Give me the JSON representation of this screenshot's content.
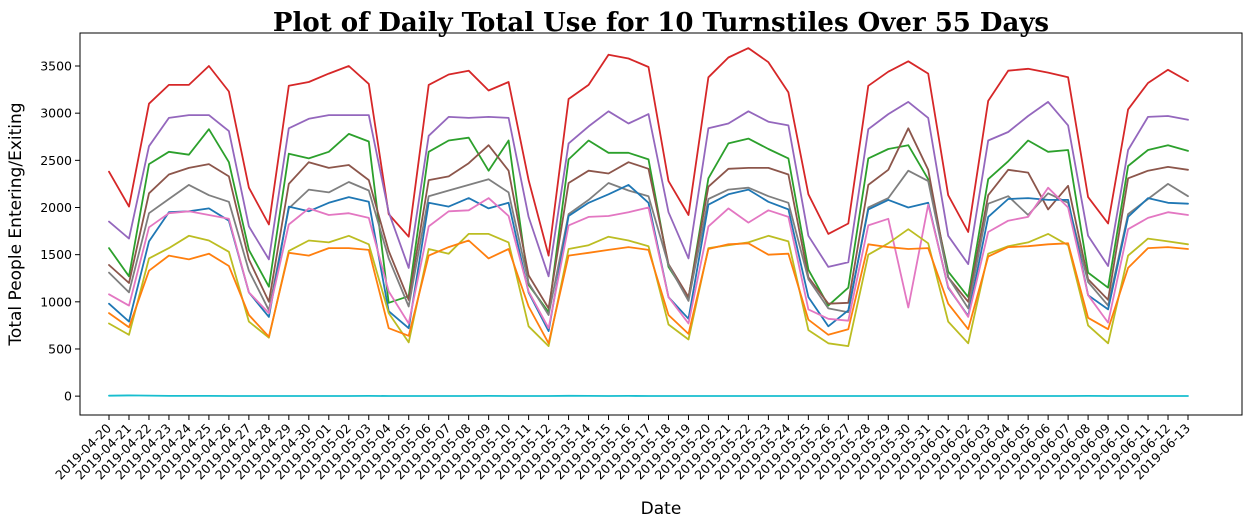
{
  "chart_data": {
    "type": "line",
    "title": "Plot of Daily Total Use for 10 Turnstiles Over 55 Days",
    "xlabel": "Date",
    "ylabel": "Total People Entering/Exiting",
    "ylim": [
      -200,
      3850
    ],
    "yticks": [
      0,
      500,
      1000,
      1500,
      2000,
      2500,
      3000,
      3500
    ],
    "grid": false,
    "x": [
      "2019-04-20",
      "2019-04-21",
      "2019-04-22",
      "2019-04-23",
      "2019-04-24",
      "2019-04-25",
      "2019-04-26",
      "2019-04-27",
      "2019-04-28",
      "2019-04-29",
      "2019-04-30",
      "2019-05-01",
      "2019-05-02",
      "2019-05-03",
      "2019-05-04",
      "2019-05-05",
      "2019-05-06",
      "2019-05-07",
      "2019-05-08",
      "2019-05-09",
      "2019-05-10",
      "2019-05-11",
      "2019-05-12",
      "2019-05-13",
      "2019-05-14",
      "2019-05-15",
      "2019-05-16",
      "2019-05-17",
      "2019-05-18",
      "2019-05-19",
      "2019-05-20",
      "2019-05-21",
      "2019-05-22",
      "2019-05-23",
      "2019-05-24",
      "2019-05-25",
      "2019-05-26",
      "2019-05-27",
      "2019-05-28",
      "2019-05-29",
      "2019-05-30",
      "2019-05-31",
      "2019-06-01",
      "2019-06-02",
      "2019-06-03",
      "2019-06-04",
      "2019-06-05",
      "2019-06-06",
      "2019-06-07",
      "2019-06-08",
      "2019-06-09",
      "2019-06-10",
      "2019-06-11",
      "2019-06-12",
      "2019-06-13"
    ],
    "series": [
      {
        "color": "#d62728",
        "values": [
          2380,
          2010,
          3100,
          3300,
          3300,
          3500,
          3230,
          2210,
          1820,
          3290,
          3330,
          3420,
          3500,
          3310,
          1930,
          1690,
          3300,
          3410,
          3450,
          3240,
          3330,
          2290,
          1490,
          3150,
          3300,
          3620,
          3580,
          3490,
          2280,
          1920,
          3380,
          3590,
          3690,
          3540,
          3220,
          2140,
          1720,
          1830,
          3290,
          3440,
          3550,
          3420,
          2130,
          1740,
          3130,
          3450,
          3470,
          3430,
          3380,
          2110,
          1830,
          3040,
          3320,
          3460,
          3340
        ]
      },
      {
        "color": "#9467bd",
        "values": [
          1850,
          1670,
          2650,
          2950,
          2980,
          2980,
          2810,
          1800,
          1450,
          2840,
          2940,
          2980,
          2980,
          2980,
          1950,
          1360,
          2760,
          2960,
          2950,
          2960,
          2950,
          1900,
          1270,
          2680,
          2860,
          3020,
          2890,
          2990,
          1950,
          1460,
          2840,
          2890,
          3020,
          2910,
          2870,
          1700,
          1370,
          1420,
          2830,
          2990,
          3120,
          2950,
          1700,
          1400,
          2710,
          2800,
          2970,
          3120,
          2870,
          1700,
          1380,
          2610,
          2960,
          2970,
          2930
        ]
      },
      {
        "color": "#2ca02c",
        "values": [
          1570,
          1270,
          2460,
          2590,
          2560,
          2830,
          2480,
          1550,
          1160,
          2570,
          2520,
          2590,
          2780,
          2700,
          990,
          1060,
          2590,
          2710,
          2740,
          2390,
          2710,
          1180,
          890,
          2510,
          2710,
          2580,
          2580,
          2510,
          1370,
          1040,
          2310,
          2680,
          2730,
          2620,
          2520,
          1340,
          960,
          1150,
          2520,
          2620,
          2660,
          2300,
          1320,
          1050,
          2300,
          2490,
          2710,
          2590,
          2610,
          1310,
          1150,
          2440,
          2610,
          2660,
          2600
        ]
      },
      {
        "color": "#8c564b",
        "values": [
          1390,
          1200,
          2150,
          2350,
          2420,
          2460,
          2330,
          1450,
          1000,
          2250,
          2480,
          2420,
          2450,
          2290,
          1540,
          1020,
          2290,
          2330,
          2470,
          2660,
          2390,
          1280,
          930,
          2260,
          2390,
          2360,
          2480,
          2410,
          1400,
          1050,
          2220,
          2410,
          2420,
          2420,
          2350,
          1260,
          980,
          990,
          2240,
          2400,
          2840,
          2400,
          1260,
          1000,
          2130,
          2400,
          2370,
          1980,
          2230,
          1240,
          1020,
          2310,
          2390,
          2430,
          2400
        ]
      },
      {
        "color": "#7f7f7f",
        "values": [
          1310,
          1100,
          1940,
          2090,
          2240,
          2130,
          2060,
          1330,
          910,
          1990,
          2190,
          2160,
          2270,
          2180,
          1460,
          950,
          2120,
          2180,
          2240,
          2300,
          2160,
          1200,
          860,
          1930,
          2080,
          2260,
          2180,
          2120,
          1390,
          1010,
          2090,
          2190,
          2210,
          2120,
          2050,
          1240,
          930,
          890,
          2000,
          2100,
          2390,
          2280,
          1260,
          930,
          2040,
          2120,
          1920,
          2150,
          2050,
          1210,
          960,
          1930,
          2090,
          2250,
          2120
        ]
      },
      {
        "color": "#1f77b4",
        "values": [
          980,
          790,
          1640,
          1950,
          1960,
          1990,
          1860,
          1100,
          840,
          2010,
          1960,
          2050,
          2110,
          2060,
          900,
          720,
          2050,
          2010,
          2100,
          1990,
          2050,
          1100,
          690,
          1910,
          2050,
          2140,
          2240,
          2050,
          1050,
          820,
          2030,
          2140,
          2190,
          2060,
          1980,
          1050,
          740,
          910,
          1980,
          2080,
          2000,
          2050,
          1150,
          850,
          1900,
          2090,
          2100,
          2080,
          2080,
          1070,
          920,
          1900,
          2100,
          2050,
          2040
        ]
      },
      {
        "color": "#e377c2",
        "values": [
          1080,
          960,
          1790,
          1940,
          1960,
          1920,
          1880,
          1100,
          880,
          1820,
          1990,
          1920,
          1940,
          1890,
          1110,
          770,
          1800,
          1960,
          1970,
          2100,
          1910,
          1110,
          720,
          1810,
          1900,
          1910,
          1950,
          2000,
          1050,
          770,
          1800,
          1990,
          1840,
          1970,
          1900,
          920,
          820,
          800,
          1810,
          1880,
          940,
          2030,
          1160,
          840,
          1740,
          1860,
          1900,
          2210,
          2000,
          1070,
          780,
          1770,
          1890,
          1950,
          1920
        ]
      },
      {
        "color": "#bcbd22",
        "values": [
          770,
          650,
          1460,
          1570,
          1700,
          1650,
          1530,
          790,
          620,
          1540,
          1650,
          1630,
          1700,
          1610,
          880,
          570,
          1560,
          1510,
          1720,
          1720,
          1630,
          740,
          530,
          1560,
          1600,
          1690,
          1650,
          1590,
          760,
          600,
          1570,
          1600,
          1630,
          1700,
          1640,
          700,
          560,
          530,
          1500,
          1620,
          1770,
          1620,
          790,
          560,
          1510,
          1590,
          1630,
          1720,
          1600,
          750,
          560,
          1490,
          1670,
          1640,
          1610
        ]
      },
      {
        "color": "#ff7f0e",
        "values": [
          880,
          730,
          1330,
          1490,
          1450,
          1510,
          1380,
          860,
          630,
          1520,
          1490,
          1570,
          1570,
          1550,
          720,
          640,
          1490,
          1580,
          1650,
          1460,
          1560,
          950,
          560,
          1490,
          1520,
          1550,
          1580,
          1550,
          860,
          660,
          1560,
          1610,
          1620,
          1500,
          1510,
          810,
          650,
          710,
          1610,
          1580,
          1560,
          1570,
          980,
          710,
          1480,
          1580,
          1590,
          1610,
          1620,
          830,
          710,
          1360,
          1570,
          1580,
          1560
        ]
      },
      {
        "color": "#17becf",
        "values": [
          5,
          8,
          6,
          3,
          2,
          2,
          1,
          1,
          1,
          1,
          1,
          1,
          1,
          2,
          1,
          1,
          1,
          1,
          1,
          3,
          1,
          1,
          1,
          4,
          2,
          1,
          2,
          1,
          1,
          1,
          1,
          1,
          1,
          1,
          1,
          1,
          1,
          1,
          1,
          1,
          1,
          1,
          1,
          1,
          1,
          1,
          1,
          1,
          1,
          3,
          1,
          1,
          1,
          1,
          1
        ]
      }
    ]
  }
}
